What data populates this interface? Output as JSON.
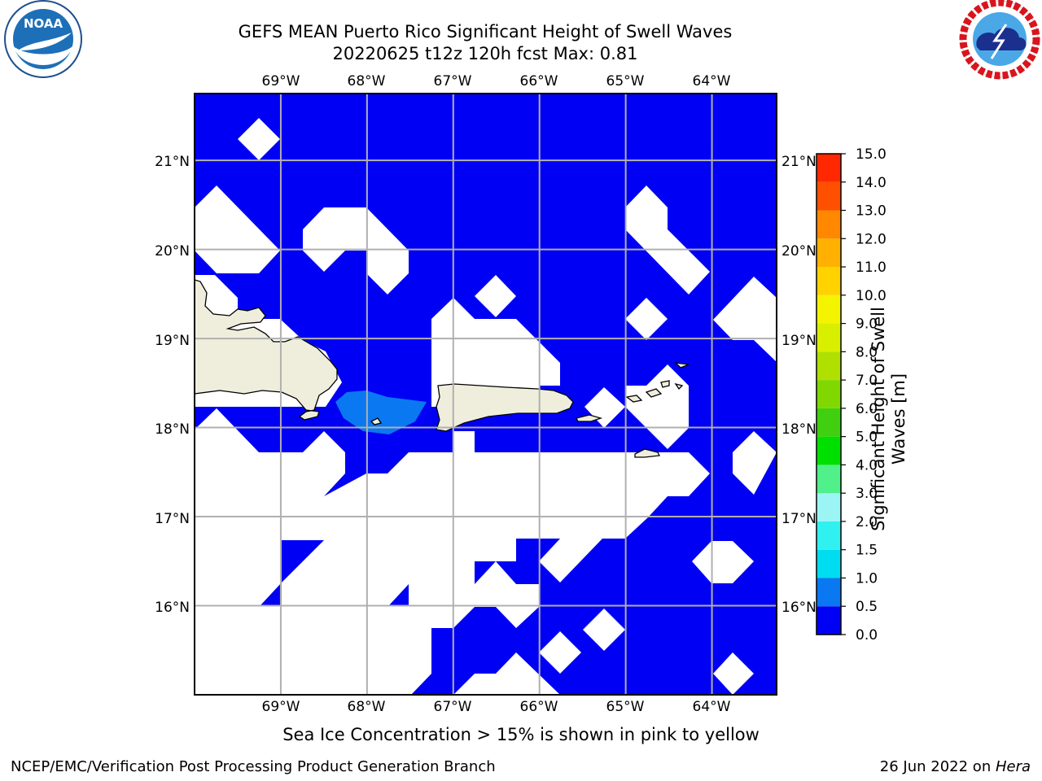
{
  "header": {
    "title_line1": "GEFS MEAN Puerto Rico Significant Height of Swell Waves",
    "title_line2": "20220625 t12z 120h fcst   Max: 0.81"
  },
  "logos": {
    "left": {
      "name": "noaa-logo",
      "text": "NOAA",
      "color": "#1d6fb8"
    },
    "right": {
      "name": "nws-logo",
      "color": "#d9141c"
    }
  },
  "map": {
    "lon_labels": [
      "69°W",
      "68°W",
      "67°W",
      "66°W",
      "65°W",
      "64°W"
    ],
    "lat_labels": [
      "21°N",
      "20°N",
      "19°N",
      "18°N",
      "17°N",
      "16°N"
    ],
    "lon_range": [
      -70.0,
      -63.25
    ],
    "lat_range": [
      15.0,
      21.75
    ],
    "ocean_color": "#0000f5",
    "land_color": "#efeedd",
    "nodata_color": "#ffffff",
    "grid_color": "#b0b0b0",
    "highlight_color": "#0a78f0"
  },
  "colorbar": {
    "label_line1": "Significant Height of Swell",
    "label_line2": "Waves [m]",
    "ticks": [
      "0.0",
      "0.5",
      "1.0",
      "1.5",
      "2.0",
      "3.0",
      "4.0",
      "5.0",
      "6.0",
      "7.0",
      "8.0",
      "9.0",
      "10.0",
      "11.0",
      "12.0",
      "13.0",
      "14.0",
      "15.0"
    ],
    "colors": [
      "#0000f5",
      "#0a78f0",
      "#00dcf0",
      "#30f0f0",
      "#66f5f5",
      "#9cf5f5",
      "#50f08a",
      "#00e000",
      "#40d010",
      "#80d800",
      "#b0e000",
      "#d8ef00",
      "#f4f400",
      "#ffd200",
      "#ffb000",
      "#ff8800",
      "#ff5000",
      "#ff2800",
      "#ff0000"
    ]
  },
  "subtitle": "Sea Ice Concentration > 15% is shown in pink to yellow",
  "footer": {
    "left": "NCEP/EMC/Verification Post Processing Product Generation Branch",
    "right_prefix": "26 Jun 2022 on ",
    "right_italic": "Hera"
  }
}
